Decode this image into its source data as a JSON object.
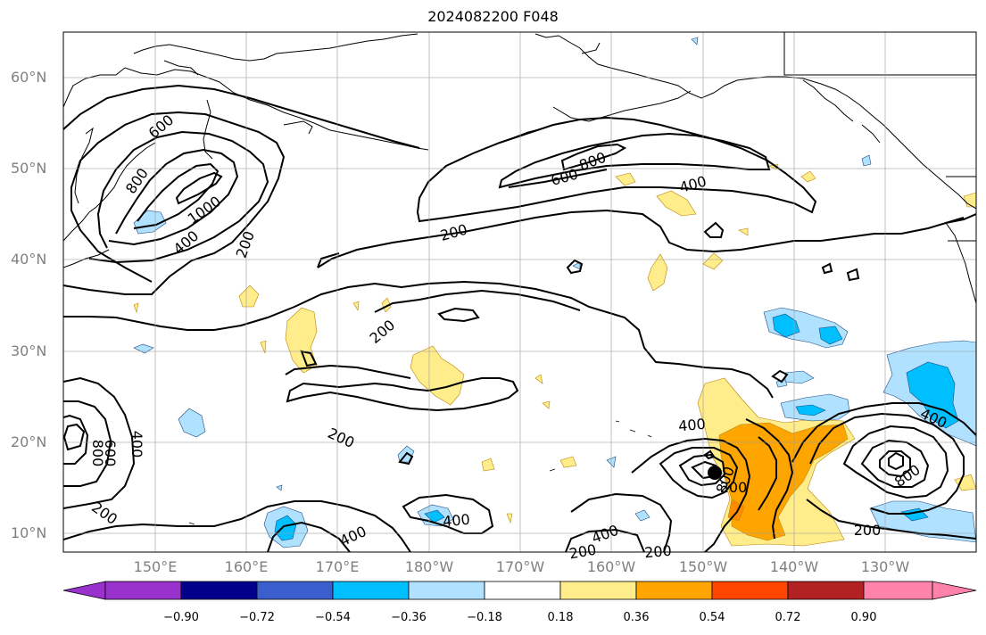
{
  "title": "2024082200 F048",
  "latitude_labels": [
    "60°N",
    "50°N",
    "40°N",
    "30°N",
    "20°N",
    "10°N"
  ],
  "longitude_labels": [
    "150°E",
    "160°E",
    "170°E",
    "180°W",
    "170°W",
    "160°W",
    "150°W",
    "140°W",
    "130°W"
  ],
  "contour_labels": [
    "600",
    "800",
    "1000",
    "400",
    "200",
    "600",
    "800",
    "400",
    "200",
    "200",
    "200",
    "400",
    "600",
    "800",
    "200",
    "400",
    "400",
    "200",
    "400",
    "200",
    "400",
    "800",
    "200",
    "400",
    "800",
    "200"
  ],
  "colorbar": {
    "tick_labels": [
      "−0.90",
      "−0.72",
      "−0.54",
      "−0.36",
      "−0.18",
      "0.18",
      "0.36",
      "0.54",
      "0.72",
      "0.90"
    ],
    "colors": [
      "#9932cc",
      "#00008b",
      "#3a5fcd",
      "#00bfff",
      "#b0e2ff",
      "#ffffff",
      "#ffec8b",
      "#ffa500",
      "#ff4500",
      "#b22222",
      "#ff82ab"
    ]
  },
  "colors": {
    "contour": "#000000",
    "coastline": "#000000",
    "grid": "#a0a0a0",
    "axis_label": "#808080"
  },
  "marker": "storm-center-dot"
}
